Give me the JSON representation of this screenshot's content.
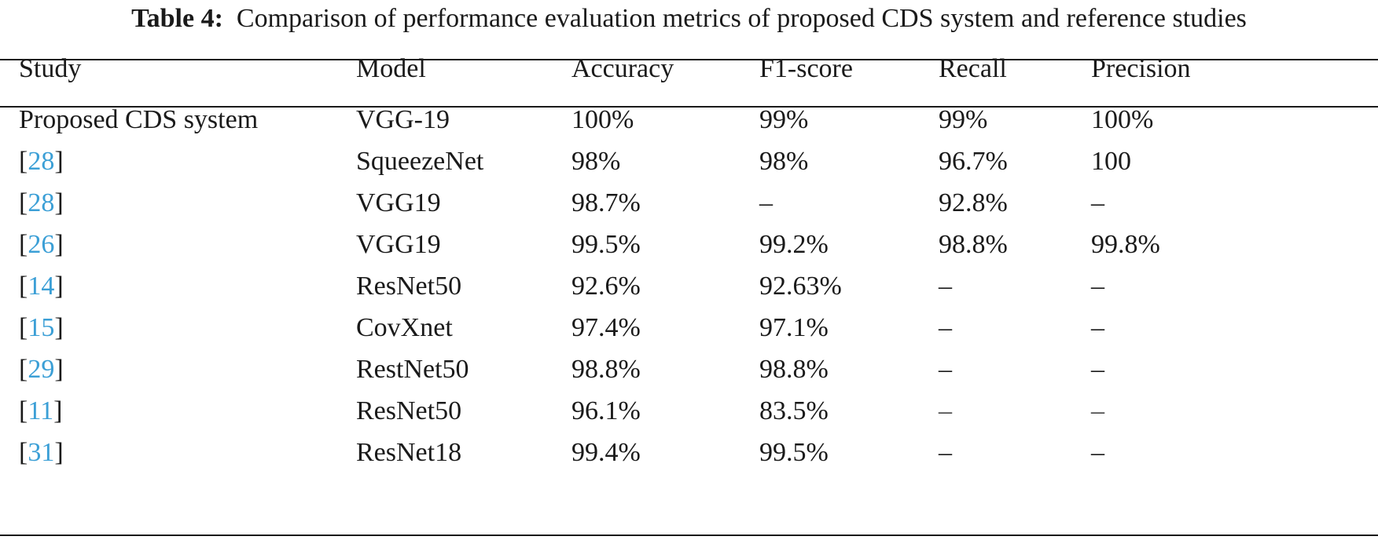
{
  "caption": {
    "label": "Table 4:",
    "text": "Comparison of performance evaluation metrics of proposed CDS system and reference studies"
  },
  "table": {
    "headers": [
      "Study",
      "Model",
      "Accuracy",
      "F1-score",
      "Recall",
      "Precision"
    ],
    "rows": [
      {
        "study_text": "Proposed CDS system",
        "study_ref": "",
        "model": "VGG-19",
        "accuracy": "100%",
        "f1": "99%",
        "recall": "99%",
        "precision": "100%"
      },
      {
        "study_text": "",
        "study_ref": "28",
        "model": "SqueezeNet",
        "accuracy": "98%",
        "f1": "98%",
        "recall": "96.7%",
        "precision": "100"
      },
      {
        "study_text": "",
        "study_ref": "28",
        "model": "VGG19",
        "accuracy": "98.7%",
        "f1": "–",
        "recall": "92.8%",
        "precision": "–"
      },
      {
        "study_text": "",
        "study_ref": "26",
        "model": "VGG19",
        "accuracy": "99.5%",
        "f1": "99.2%",
        "recall": "98.8%",
        "precision": "99.8%"
      },
      {
        "study_text": "",
        "study_ref": "14",
        "model": "ResNet50",
        "accuracy": "92.6%",
        "f1": "92.63%",
        "recall": "–",
        "precision": "–"
      },
      {
        "study_text": "",
        "study_ref": "15",
        "model": "CovXnet",
        "accuracy": "97.4%",
        "f1": "97.1%",
        "recall": "–",
        "precision": "–"
      },
      {
        "study_text": "",
        "study_ref": "29",
        "model": "RestNet50",
        "accuracy": "98.8%",
        "f1": "98.8%",
        "recall": "–",
        "precision": "–"
      },
      {
        "study_text": "",
        "study_ref": "11",
        "model": "ResNet50",
        "accuracy": "96.1%",
        "f1": "83.5%",
        "recall": "–",
        "precision": "–"
      },
      {
        "study_text": "",
        "study_ref": "31",
        "model": "ResNet18",
        "accuracy": "99.4%",
        "f1": "99.5%",
        "recall": "–",
        "precision": "–"
      }
    ]
  },
  "colors": {
    "text": "#1a1a1a",
    "reference_link": "#3b9fd6"
  }
}
